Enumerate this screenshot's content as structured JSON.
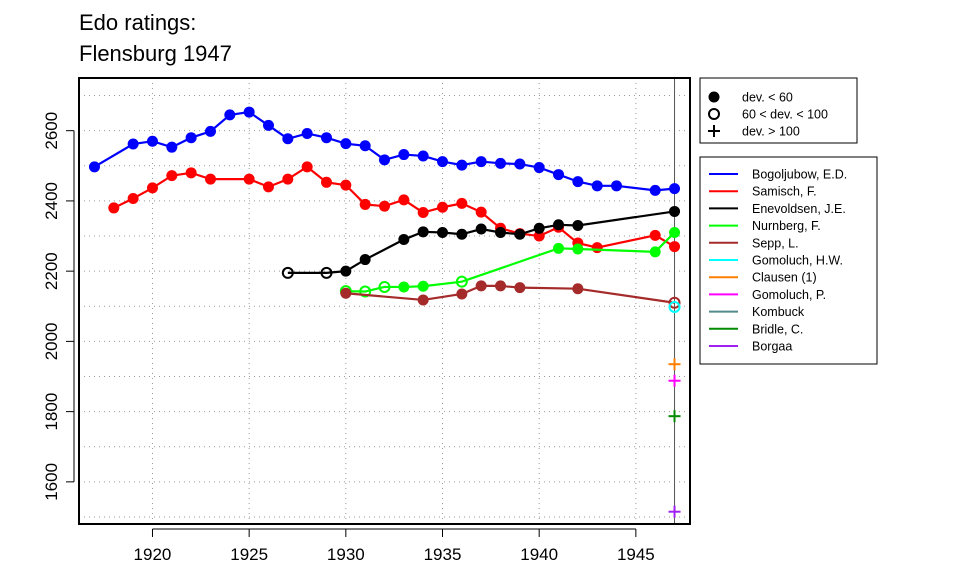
{
  "chart_data": {
    "type": "line",
    "title": "Edo ratings:",
    "subtitle": "Flensburg 1947",
    "xlabel": "",
    "ylabel": "",
    "xlim": [
      1916.2,
      1947.8
    ],
    "ylim": [
      1480,
      2750
    ],
    "xticks": [
      1920,
      1925,
      1930,
      1935,
      1940,
      1945
    ],
    "yticks": [
      1600,
      1800,
      2000,
      2200,
      2400,
      2600
    ],
    "grid": true,
    "marker_legend": [
      {
        "symbol": "filled",
        "label": "dev. < 60"
      },
      {
        "symbol": "open",
        "label": "60 < dev. < 100"
      },
      {
        "symbol": "plus",
        "label": "dev. > 100"
      }
    ],
    "series": [
      {
        "name": "Bogoljubow, E.D.",
        "color": "#0000ff",
        "points": [
          [
            1917,
            2497,
            "f"
          ],
          [
            1919,
            2562,
            "f"
          ],
          [
            1920,
            2570,
            "f"
          ],
          [
            1921,
            2553,
            "f"
          ],
          [
            1922,
            2580,
            "f"
          ],
          [
            1923,
            2598,
            "f"
          ],
          [
            1924,
            2645,
            "f"
          ],
          [
            1925,
            2653,
            "f"
          ],
          [
            1926,
            2615,
            "f"
          ],
          [
            1927,
            2577,
            "f"
          ],
          [
            1928,
            2592,
            "f"
          ],
          [
            1929,
            2580,
            "f"
          ],
          [
            1930,
            2563,
            "f"
          ],
          [
            1931,
            2557,
            "f"
          ],
          [
            1932,
            2517,
            "f"
          ],
          [
            1933,
            2532,
            "f"
          ],
          [
            1934,
            2528,
            "f"
          ],
          [
            1935,
            2512,
            "f"
          ],
          [
            1936,
            2502,
            "f"
          ],
          [
            1937,
            2512,
            "f"
          ],
          [
            1938,
            2507,
            "f"
          ],
          [
            1939,
            2505,
            "f"
          ],
          [
            1940,
            2495,
            "f"
          ],
          [
            1941,
            2475,
            "f"
          ],
          [
            1942,
            2455,
            "f"
          ],
          [
            1943,
            2443,
            "f"
          ],
          [
            1944,
            2443,
            "f"
          ],
          [
            1946,
            2430,
            "f"
          ],
          [
            1947,
            2435,
            "f"
          ]
        ]
      },
      {
        "name": "Samisch, F.",
        "color": "#ff0000",
        "points": [
          [
            1918,
            2380,
            "f"
          ],
          [
            1919,
            2407,
            "f"
          ],
          [
            1920,
            2437,
            "f"
          ],
          [
            1921,
            2472,
            "f"
          ],
          [
            1922,
            2480,
            "f"
          ],
          [
            1923,
            2462,
            "f"
          ],
          [
            1925,
            2462,
            "f"
          ],
          [
            1926,
            2440,
            "f"
          ],
          [
            1927,
            2462,
            "f"
          ],
          [
            1928,
            2497,
            "f"
          ],
          [
            1929,
            2453,
            "f"
          ],
          [
            1930,
            2445,
            "f"
          ],
          [
            1931,
            2390,
            "f"
          ],
          [
            1932,
            2385,
            "f"
          ],
          [
            1933,
            2403,
            "f"
          ],
          [
            1934,
            2367,
            "f"
          ],
          [
            1935,
            2382,
            "f"
          ],
          [
            1936,
            2393,
            "f"
          ],
          [
            1937,
            2368,
            "f"
          ],
          [
            1938,
            2322,
            "f"
          ],
          [
            1939,
            2307,
            "f"
          ],
          [
            1940,
            2300,
            "f"
          ],
          [
            1941,
            2325,
            "f"
          ],
          [
            1942,
            2280,
            "f"
          ],
          [
            1943,
            2267,
            "f"
          ],
          [
            1946,
            2302,
            "f"
          ],
          [
            1947,
            2270,
            "f"
          ]
        ]
      },
      {
        "name": "Enevoldsen, J.E.",
        "color": "#000000",
        "points": [
          [
            1927,
            2195,
            "o"
          ],
          [
            1929,
            2195,
            "o"
          ],
          [
            1930,
            2200,
            "f"
          ],
          [
            1931,
            2233,
            "f"
          ],
          [
            1933,
            2290,
            "f"
          ],
          [
            1934,
            2312,
            "f"
          ],
          [
            1935,
            2310,
            "f"
          ],
          [
            1936,
            2305,
            "f"
          ],
          [
            1937,
            2320,
            "f"
          ],
          [
            1938,
            2310,
            "f"
          ],
          [
            1939,
            2305,
            "f"
          ],
          [
            1940,
            2322,
            "f"
          ],
          [
            1941,
            2332,
            "f"
          ],
          [
            1942,
            2330,
            "f"
          ],
          [
            1947,
            2370,
            "f"
          ]
        ]
      },
      {
        "name": "Nurnberg, F.",
        "color": "#00ff00",
        "points": [
          [
            1930,
            2143,
            "o"
          ],
          [
            1931,
            2142,
            "o"
          ],
          [
            1932,
            2155,
            "o"
          ],
          [
            1933,
            2155,
            "f"
          ],
          [
            1934,
            2157,
            "f"
          ],
          [
            1936,
            2170,
            "o"
          ],
          [
            1941,
            2265,
            "f"
          ],
          [
            1942,
            2263,
            "f"
          ],
          [
            1946,
            2255,
            "f"
          ],
          [
            1947,
            2310,
            "f"
          ]
        ]
      },
      {
        "name": "Sepp, L.",
        "color": "#a52a2a",
        "points": [
          [
            1930,
            2137,
            "f"
          ],
          [
            1934,
            2118,
            "f"
          ],
          [
            1936,
            2135,
            "f"
          ],
          [
            1937,
            2158,
            "f"
          ],
          [
            1938,
            2158,
            "f"
          ],
          [
            1939,
            2153,
            "f"
          ],
          [
            1942,
            2150,
            "f"
          ],
          [
            1947,
            2110,
            "o"
          ]
        ]
      },
      {
        "name": "Gomoluch, H.W.",
        "color": "#00ffff",
        "points": [
          [
            1947,
            2098,
            "o"
          ]
        ]
      },
      {
        "name": "Clausen (1)",
        "color": "#ff7f00",
        "points": [
          [
            1947,
            1935,
            "p"
          ]
        ]
      },
      {
        "name": "Gomoluch, P.",
        "color": "#ff00ff",
        "points": [
          [
            1947,
            1888,
            "p"
          ]
        ]
      },
      {
        "name": "Kombuck",
        "color": "#528b8b",
        "points": []
      },
      {
        "name": "Bridle, C.",
        "color": "#008b00",
        "points": [
          [
            1947,
            1787,
            "p"
          ]
        ]
      },
      {
        "name": "Borgaa",
        "color": "#a020f0",
        "points": [
          [
            1947,
            1515,
            "p"
          ]
        ]
      }
    ],
    "vline_x": 1947
  }
}
